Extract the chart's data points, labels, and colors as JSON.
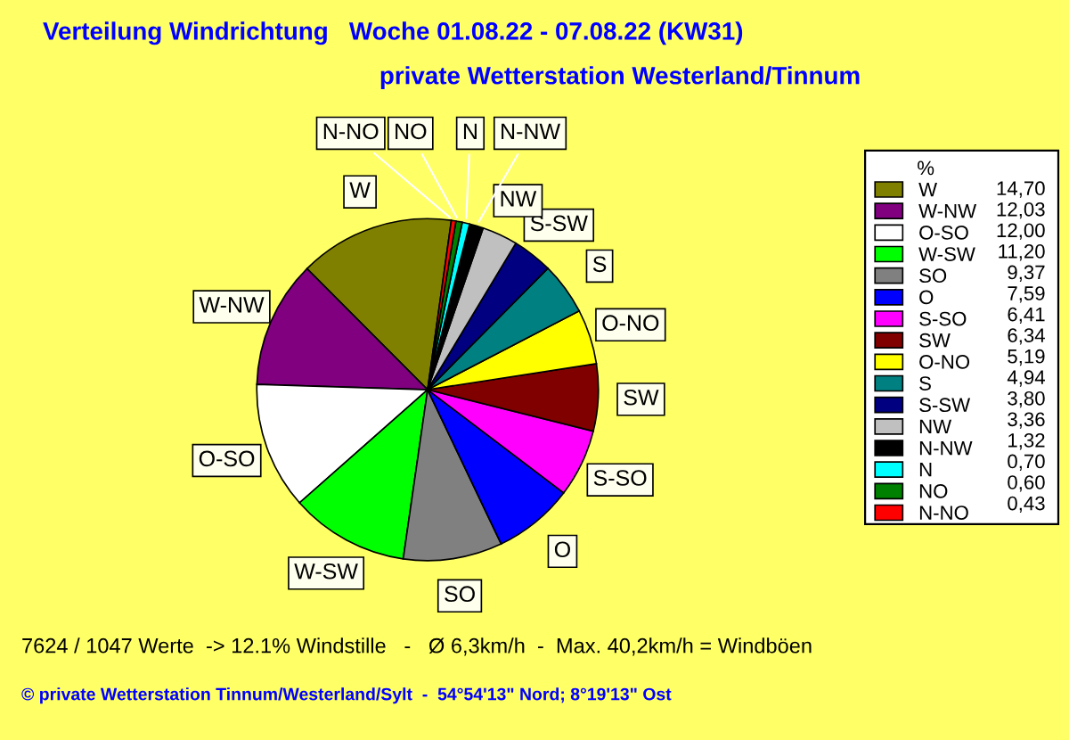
{
  "chart_data": {
    "type": "pie",
    "title": "Verteilung Windrichtung   Woche 01.08.22 - 07.08.22 (KW31)",
    "subtitle": "private Wetterstation Westerland/Tinnum",
    "categories": [
      "W",
      "W-NW",
      "O-SO",
      "W-SW",
      "SO",
      "O",
      "S-SO",
      "SW",
      "O-NO",
      "S",
      "S-SW",
      "NW",
      "N-NW",
      "N",
      "NO",
      "N-NO"
    ],
    "values": [
      14.7,
      12.03,
      12.0,
      11.2,
      9.37,
      7.59,
      6.41,
      6.34,
      5.19,
      4.94,
      3.8,
      3.36,
      1.32,
      0.7,
      0.6,
      0.43
    ],
    "value_labels": [
      "14,70",
      "12,03",
      "12,00",
      "11,20",
      "9,37",
      "7,59",
      "6,41",
      "6,34",
      "5,19",
      "4,94",
      "3,80",
      "3,36",
      "1,32",
      "0,70",
      "0,60",
      "0,43"
    ],
    "colors": [
      "#808000",
      "#800080",
      "#ffffff",
      "#00ff00",
      "#808080",
      "#0000ff",
      "#ff00ff",
      "#800000",
      "#ffff00",
      "#008080",
      "#000080",
      "#c0c0c0",
      "#000000",
      "#00ffff",
      "#008000",
      "#ff0000"
    ],
    "legend_title": "%",
    "legend": "right",
    "annotations": [
      "7624 / 1047 Werte  -> 12.1% Windstille   -   Ø 6,3km/h  -  Max. 40,2km/h = Windböen",
      "© private Wetterstation Tinnum/Westerland/Sylt  -  54°54'13\" Nord; 8°19'13\" Ost"
    ]
  }
}
